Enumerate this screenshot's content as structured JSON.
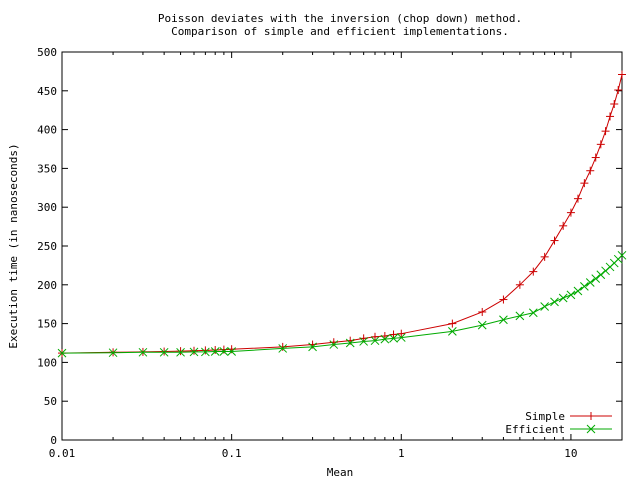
{
  "chart_data": {
    "type": "line",
    "title_line1": "Poisson deviates with the inversion (chop down) method.",
    "title_line2": "Comparison of simple and efficient implementations.",
    "xlabel": "Mean",
    "ylabel": "Execution time (in nanoseconds)",
    "x_scale": "log",
    "xlim": [
      0.01,
      20
    ],
    "ylim": [
      0,
      500
    ],
    "grid": false,
    "legend_position": "bottom-right",
    "x_ticks": [
      {
        "value": 0.01,
        "label": "0.01"
      },
      {
        "value": 0.1,
        "label": "0.1"
      },
      {
        "value": 1,
        "label": "1"
      },
      {
        "value": 10,
        "label": "10"
      }
    ],
    "y_ticks": [
      {
        "value": 0,
        "label": "0"
      },
      {
        "value": 50,
        "label": "50"
      },
      {
        "value": 100,
        "label": "100"
      },
      {
        "value": 150,
        "label": "150"
      },
      {
        "value": 200,
        "label": "200"
      },
      {
        "value": 250,
        "label": "250"
      },
      {
        "value": 300,
        "label": "300"
      },
      {
        "value": 350,
        "label": "350"
      },
      {
        "value": 400,
        "label": "400"
      },
      {
        "value": 450,
        "label": "450"
      },
      {
        "value": 500,
        "label": "500"
      }
    ],
    "series": [
      {
        "name": "Simple",
        "color": "#cc0000",
        "marker": "plus",
        "x": [
          0.01,
          0.02,
          0.03,
          0.04,
          0.05,
          0.06,
          0.07,
          0.08,
          0.09,
          0.1,
          0.2,
          0.3,
          0.4,
          0.5,
          0.6,
          0.7,
          0.8,
          0.9,
          1,
          2,
          3,
          4,
          5,
          6,
          7,
          8,
          9,
          10,
          11,
          12,
          13,
          14,
          15,
          16,
          17,
          18,
          19,
          20
        ],
        "y": [
          112,
          113,
          113.5,
          114,
          114.5,
          115,
          115.5,
          116,
          116.5,
          117,
          120,
          123,
          126,
          128,
          131,
          133,
          134,
          136,
          137,
          150,
          165,
          181,
          200,
          217,
          236,
          257,
          276,
          293,
          311,
          331,
          347,
          364,
          381,
          398,
          417,
          433,
          451,
          471
        ]
      },
      {
        "name": "Efficient",
        "color": "#00aa00",
        "marker": "cross",
        "x": [
          0.01,
          0.02,
          0.03,
          0.04,
          0.05,
          0.06,
          0.07,
          0.08,
          0.09,
          0.1,
          0.2,
          0.3,
          0.4,
          0.5,
          0.6,
          0.7,
          0.8,
          0.9,
          1,
          2,
          3,
          4,
          5,
          6,
          7,
          8,
          9,
          10,
          11,
          12,
          13,
          14,
          15,
          16,
          17,
          18,
          19,
          20
        ],
        "y": [
          112,
          112.5,
          113,
          113,
          113,
          113.5,
          113.5,
          114,
          114,
          114,
          118,
          120,
          123,
          125,
          127,
          128,
          130,
          131,
          132,
          140,
          148,
          155,
          160,
          164,
          172,
          178,
          183,
          187,
          192,
          198,
          203,
          208,
          213,
          218,
          223,
          228,
          233,
          238
        ]
      }
    ]
  }
}
